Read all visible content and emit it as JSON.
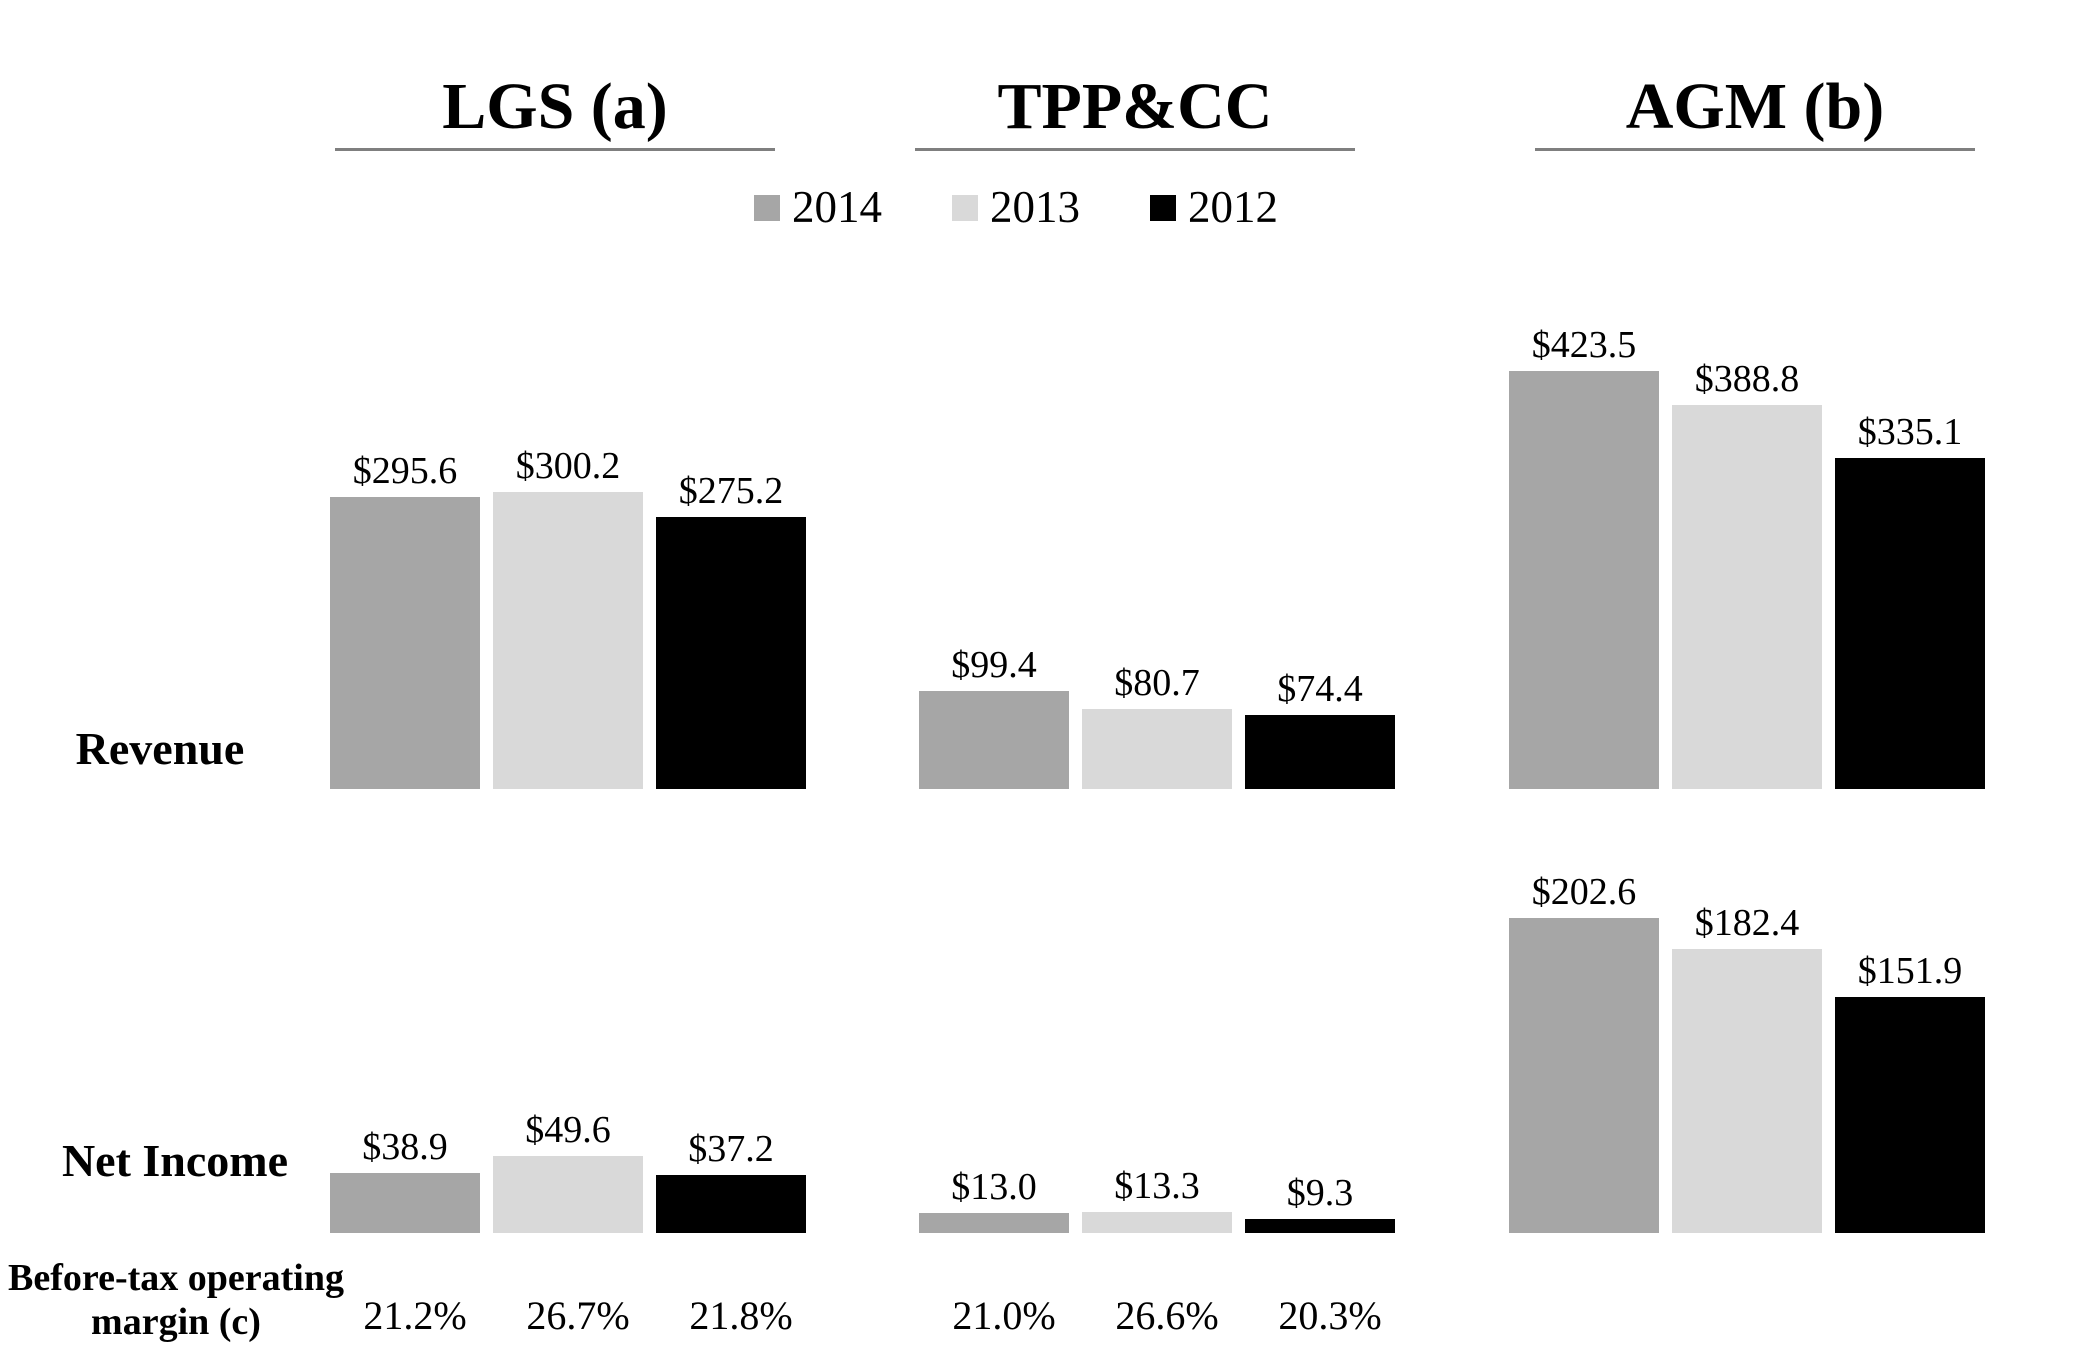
{
  "chart_data": {
    "type": "bar",
    "layout": {
      "orientation": "vertical",
      "grid": false,
      "axes_shown": false,
      "legend_position": "top-center",
      "value_labels": "above-bars"
    },
    "value_label_prefix": "$",
    "legend": {
      "items": [
        {
          "label": "2014",
          "color": "#a6a6a6"
        },
        {
          "label": "2013",
          "color": "#d9d9d9"
        },
        {
          "label": "2012",
          "color": "#000000"
        }
      ]
    },
    "groups": [
      {
        "label": "LGS (a)"
      },
      {
        "label": "TPP&CC"
      },
      {
        "label": "AGM (b)"
      }
    ],
    "rows": [
      {
        "key": "revenue",
        "label": "Revenue",
        "series": [
          {
            "name": "2014",
            "values": [
              295.6,
              99.4,
              423.5
            ]
          },
          {
            "name": "2013",
            "values": [
              300.2,
              80.7,
              388.8
            ]
          },
          {
            "name": "2012",
            "values": [
              275.2,
              74.4,
              335.1
            ]
          }
        ]
      },
      {
        "key": "net_income",
        "label": "Net Income",
        "series": [
          {
            "name": "2014",
            "values": [
              38.9,
              13.0,
              202.6
            ]
          },
          {
            "name": "2013",
            "values": [
              49.6,
              13.3,
              182.4
            ]
          },
          {
            "name": "2012",
            "values": [
              37.2,
              9.3,
              151.9
            ]
          }
        ]
      }
    ],
    "margin_row": {
      "label_line1": "Before-tax operating",
      "label_line2": "margin (c)",
      "values_by_group": [
        [
          "21.2%",
          "26.7%",
          "21.8%"
        ],
        [
          "21.0%",
          "26.6%",
          "20.3%"
        ],
        []
      ]
    }
  }
}
